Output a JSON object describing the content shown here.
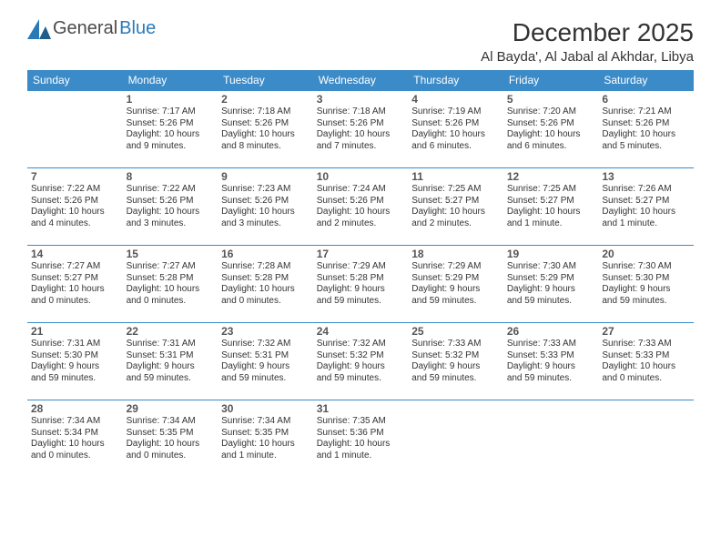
{
  "brand": {
    "part1": "General",
    "part2": "Blue",
    "text_color": "#4a4a4a",
    "accent_color": "#2a7ab8"
  },
  "title": {
    "month": "December 2025",
    "location": "Al Bayda', Al Jabal al Akhdar, Libya",
    "title_fontsize": 28,
    "location_fontsize": 15
  },
  "style": {
    "header_bg": "#3b8bc8",
    "header_fg": "#ffffff",
    "cell_border": "#3b8bc8",
    "body_bg": "#ffffff",
    "text_color": "#333333",
    "daynum_color": "#555555",
    "body_fontsize": 10,
    "header_fontsize": 12
  },
  "columns": [
    "Sunday",
    "Monday",
    "Tuesday",
    "Wednesday",
    "Thursday",
    "Friday",
    "Saturday"
  ],
  "weeks": [
    [
      null,
      {
        "n": "1",
        "sr": "Sunrise: 7:17 AM",
        "ss": "Sunset: 5:26 PM",
        "d1": "Daylight: 10 hours",
        "d2": "and 9 minutes."
      },
      {
        "n": "2",
        "sr": "Sunrise: 7:18 AM",
        "ss": "Sunset: 5:26 PM",
        "d1": "Daylight: 10 hours",
        "d2": "and 8 minutes."
      },
      {
        "n": "3",
        "sr": "Sunrise: 7:18 AM",
        "ss": "Sunset: 5:26 PM",
        "d1": "Daylight: 10 hours",
        "d2": "and 7 minutes."
      },
      {
        "n": "4",
        "sr": "Sunrise: 7:19 AM",
        "ss": "Sunset: 5:26 PM",
        "d1": "Daylight: 10 hours",
        "d2": "and 6 minutes."
      },
      {
        "n": "5",
        "sr": "Sunrise: 7:20 AM",
        "ss": "Sunset: 5:26 PM",
        "d1": "Daylight: 10 hours",
        "d2": "and 6 minutes."
      },
      {
        "n": "6",
        "sr": "Sunrise: 7:21 AM",
        "ss": "Sunset: 5:26 PM",
        "d1": "Daylight: 10 hours",
        "d2": "and 5 minutes."
      }
    ],
    [
      {
        "n": "7",
        "sr": "Sunrise: 7:22 AM",
        "ss": "Sunset: 5:26 PM",
        "d1": "Daylight: 10 hours",
        "d2": "and 4 minutes."
      },
      {
        "n": "8",
        "sr": "Sunrise: 7:22 AM",
        "ss": "Sunset: 5:26 PM",
        "d1": "Daylight: 10 hours",
        "d2": "and 3 minutes."
      },
      {
        "n": "9",
        "sr": "Sunrise: 7:23 AM",
        "ss": "Sunset: 5:26 PM",
        "d1": "Daylight: 10 hours",
        "d2": "and 3 minutes."
      },
      {
        "n": "10",
        "sr": "Sunrise: 7:24 AM",
        "ss": "Sunset: 5:26 PM",
        "d1": "Daylight: 10 hours",
        "d2": "and 2 minutes."
      },
      {
        "n": "11",
        "sr": "Sunrise: 7:25 AM",
        "ss": "Sunset: 5:27 PM",
        "d1": "Daylight: 10 hours",
        "d2": "and 2 minutes."
      },
      {
        "n": "12",
        "sr": "Sunrise: 7:25 AM",
        "ss": "Sunset: 5:27 PM",
        "d1": "Daylight: 10 hours",
        "d2": "and 1 minute."
      },
      {
        "n": "13",
        "sr": "Sunrise: 7:26 AM",
        "ss": "Sunset: 5:27 PM",
        "d1": "Daylight: 10 hours",
        "d2": "and 1 minute."
      }
    ],
    [
      {
        "n": "14",
        "sr": "Sunrise: 7:27 AM",
        "ss": "Sunset: 5:27 PM",
        "d1": "Daylight: 10 hours",
        "d2": "and 0 minutes."
      },
      {
        "n": "15",
        "sr": "Sunrise: 7:27 AM",
        "ss": "Sunset: 5:28 PM",
        "d1": "Daylight: 10 hours",
        "d2": "and 0 minutes."
      },
      {
        "n": "16",
        "sr": "Sunrise: 7:28 AM",
        "ss": "Sunset: 5:28 PM",
        "d1": "Daylight: 10 hours",
        "d2": "and 0 minutes."
      },
      {
        "n": "17",
        "sr": "Sunrise: 7:29 AM",
        "ss": "Sunset: 5:28 PM",
        "d1": "Daylight: 9 hours",
        "d2": "and 59 minutes."
      },
      {
        "n": "18",
        "sr": "Sunrise: 7:29 AM",
        "ss": "Sunset: 5:29 PM",
        "d1": "Daylight: 9 hours",
        "d2": "and 59 minutes."
      },
      {
        "n": "19",
        "sr": "Sunrise: 7:30 AM",
        "ss": "Sunset: 5:29 PM",
        "d1": "Daylight: 9 hours",
        "d2": "and 59 minutes."
      },
      {
        "n": "20",
        "sr": "Sunrise: 7:30 AM",
        "ss": "Sunset: 5:30 PM",
        "d1": "Daylight: 9 hours",
        "d2": "and 59 minutes."
      }
    ],
    [
      {
        "n": "21",
        "sr": "Sunrise: 7:31 AM",
        "ss": "Sunset: 5:30 PM",
        "d1": "Daylight: 9 hours",
        "d2": "and 59 minutes."
      },
      {
        "n": "22",
        "sr": "Sunrise: 7:31 AM",
        "ss": "Sunset: 5:31 PM",
        "d1": "Daylight: 9 hours",
        "d2": "and 59 minutes."
      },
      {
        "n": "23",
        "sr": "Sunrise: 7:32 AM",
        "ss": "Sunset: 5:31 PM",
        "d1": "Daylight: 9 hours",
        "d2": "and 59 minutes."
      },
      {
        "n": "24",
        "sr": "Sunrise: 7:32 AM",
        "ss": "Sunset: 5:32 PM",
        "d1": "Daylight: 9 hours",
        "d2": "and 59 minutes."
      },
      {
        "n": "25",
        "sr": "Sunrise: 7:33 AM",
        "ss": "Sunset: 5:32 PM",
        "d1": "Daylight: 9 hours",
        "d2": "and 59 minutes."
      },
      {
        "n": "26",
        "sr": "Sunrise: 7:33 AM",
        "ss": "Sunset: 5:33 PM",
        "d1": "Daylight: 9 hours",
        "d2": "and 59 minutes."
      },
      {
        "n": "27",
        "sr": "Sunrise: 7:33 AM",
        "ss": "Sunset: 5:33 PM",
        "d1": "Daylight: 10 hours",
        "d2": "and 0 minutes."
      }
    ],
    [
      {
        "n": "28",
        "sr": "Sunrise: 7:34 AM",
        "ss": "Sunset: 5:34 PM",
        "d1": "Daylight: 10 hours",
        "d2": "and 0 minutes."
      },
      {
        "n": "29",
        "sr": "Sunrise: 7:34 AM",
        "ss": "Sunset: 5:35 PM",
        "d1": "Daylight: 10 hours",
        "d2": "and 0 minutes."
      },
      {
        "n": "30",
        "sr": "Sunrise: 7:34 AM",
        "ss": "Sunset: 5:35 PM",
        "d1": "Daylight: 10 hours",
        "d2": "and 1 minute."
      },
      {
        "n": "31",
        "sr": "Sunrise: 7:35 AM",
        "ss": "Sunset: 5:36 PM",
        "d1": "Daylight: 10 hours",
        "d2": "and 1 minute."
      },
      null,
      null,
      null
    ]
  ]
}
